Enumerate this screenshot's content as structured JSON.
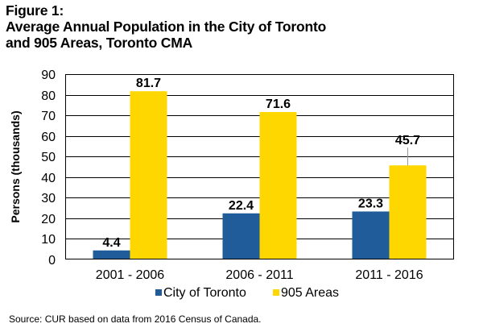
{
  "chart_data": {
    "type": "bar",
    "title_lines": [
      "Figure 1:",
      "Average Annual Population in the City of Toronto",
      "and 905 Areas, Toronto CMA"
    ],
    "xlabel": "",
    "ylabel": "Persons (thousands)",
    "ylim": [
      0,
      90
    ],
    "yticks": [
      0,
      10,
      20,
      30,
      40,
      50,
      60,
      70,
      80,
      90
    ],
    "grid": true,
    "categories": [
      "2001 - 2006",
      "2006 - 2011",
      "2011 - 2016"
    ],
    "series": [
      {
        "name": "City of Toronto",
        "color": "#1F5C99",
        "values": [
          4.4,
          22.4,
          23.3
        ],
        "labels": [
          "4.4",
          "22.4",
          "23.3"
        ]
      },
      {
        "name": "905 Areas",
        "color": "#FFD700",
        "values": [
          81.7,
          71.6,
          45.7
        ],
        "labels": [
          "81.7",
          "71.6",
          "45.7"
        ]
      }
    ],
    "legend_position": "bottom",
    "source": "Source: CUR based on data from 2016 Census of Canada."
  }
}
